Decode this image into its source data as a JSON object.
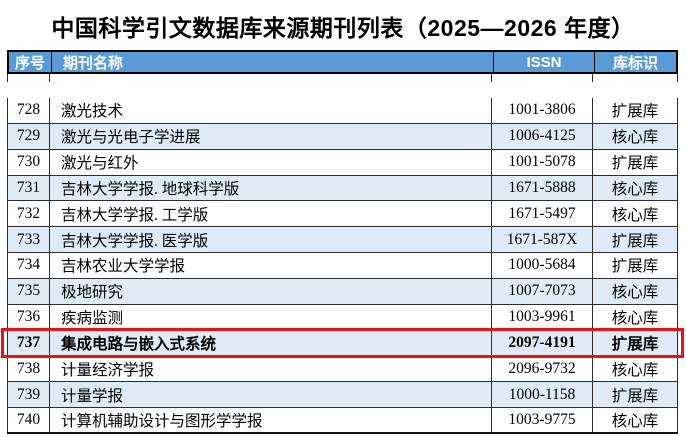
{
  "title": "中国科学引文数据库来源期刊列表（2025—2026 年度）",
  "table": {
    "columns": [
      {
        "key": "no",
        "label": "序号"
      },
      {
        "key": "name",
        "label": "期刊名称"
      },
      {
        "key": "issn",
        "label": "ISSN"
      },
      {
        "key": "db",
        "label": "库标识"
      }
    ],
    "rows": [
      {
        "no": "728",
        "name": "激光技术",
        "issn": "1001-3806",
        "db": "扩展库",
        "highlighted": false
      },
      {
        "no": "729",
        "name": "激光与光电子学进展",
        "issn": "1006-4125",
        "db": "核心库",
        "highlighted": false
      },
      {
        "no": "730",
        "name": "激光与红外",
        "issn": "1001-5078",
        "db": "扩展库",
        "highlighted": false
      },
      {
        "no": "731",
        "name": "吉林大学学报. 地球科学版",
        "issn": "1671-5888",
        "db": "核心库",
        "highlighted": false
      },
      {
        "no": "732",
        "name": "吉林大学学报. 工学版",
        "issn": "1671-5497",
        "db": "核心库",
        "highlighted": false
      },
      {
        "no": "733",
        "name": "吉林大学学报. 医学版",
        "issn": "1671-587X",
        "db": "扩展库",
        "highlighted": false
      },
      {
        "no": "734",
        "name": "吉林农业大学学报",
        "issn": "1000-5684",
        "db": "扩展库",
        "highlighted": false
      },
      {
        "no": "735",
        "name": "极地研究",
        "issn": "1007-7073",
        "db": "核心库",
        "highlighted": false
      },
      {
        "no": "736",
        "name": "疾病监测",
        "issn": "1003-9961",
        "db": "核心库",
        "highlighted": false
      },
      {
        "no": "737",
        "name": "集成电路与嵌入式系统",
        "issn": "2097-4191",
        "db": "扩展库",
        "highlighted": true
      },
      {
        "no": "738",
        "name": "计量经济学报",
        "issn": "2096-9732",
        "db": "核心库",
        "highlighted": false
      },
      {
        "no": "739",
        "name": "计量学报",
        "issn": "1000-1158",
        "db": "扩展库",
        "highlighted": false
      },
      {
        "no": "740",
        "name": "计算机辅助设计与图形学学报",
        "issn": "1003-9775",
        "db": "核心库",
        "highlighted": false
      }
    ]
  },
  "colors": {
    "header_bg": "#5B9BD5",
    "alt_row_bg": "#DEEBF7",
    "highlight_border": "#EE1111",
    "header_text": "#FFFFFF",
    "body_text": "#000000"
  }
}
